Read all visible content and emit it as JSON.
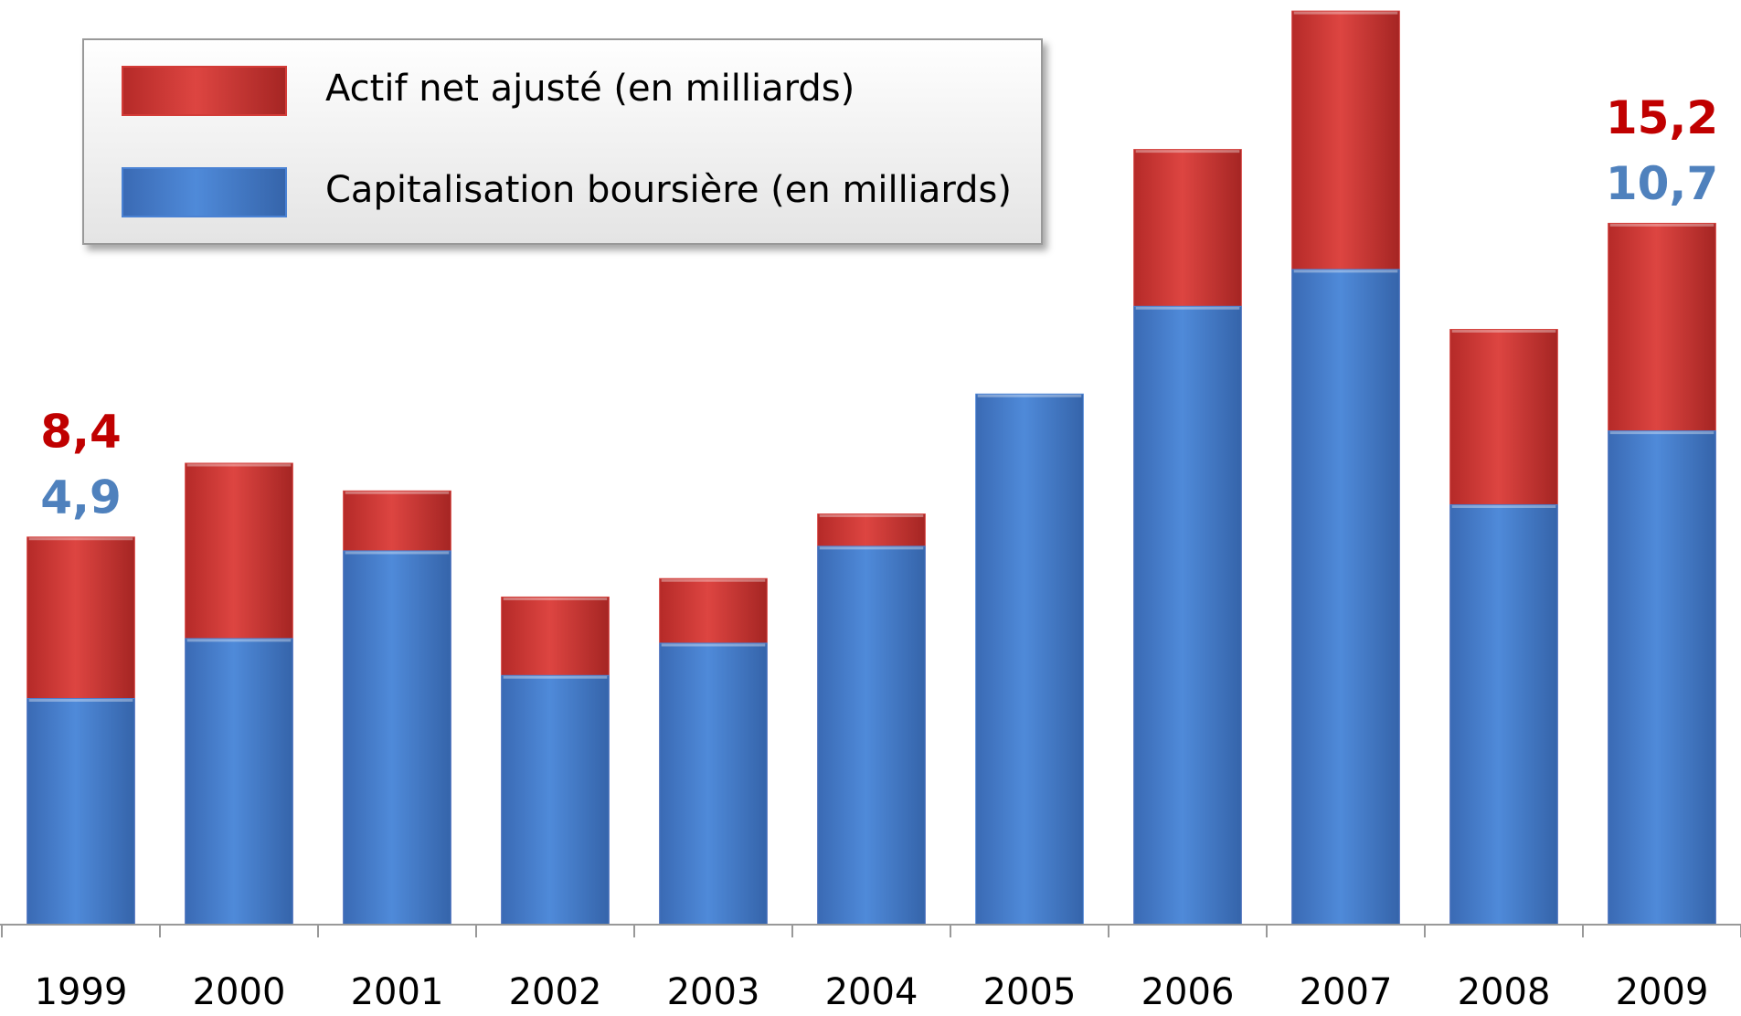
{
  "chart_data": {
    "type": "bar",
    "overlap": true,
    "categories": [
      "1999",
      "2000",
      "2001",
      "2002",
      "2003",
      "2004",
      "2005",
      "2006",
      "2007",
      "2008",
      "2009"
    ],
    "series": [
      {
        "name": "Actif net ajusté (en milliards)",
        "color": "#d33c38",
        "values": [
          8.4,
          10.0,
          9.4,
          7.1,
          7.5,
          8.9,
          null,
          16.8,
          19.8,
          12.9,
          15.2
        ],
        "value_labels": [
          "8,4",
          null,
          null,
          null,
          null,
          null,
          null,
          null,
          null,
          null,
          "15,2"
        ]
      },
      {
        "name": "Capitalisation boursière (en milliards)",
        "color": "#4a82d4",
        "values": [
          4.9,
          6.2,
          8.1,
          5.4,
          6.1,
          8.2,
          11.5,
          13.4,
          14.2,
          9.1,
          10.7
        ],
        "value_labels": [
          "4,9",
          null,
          null,
          null,
          null,
          null,
          null,
          null,
          null,
          null,
          "10,7"
        ]
      }
    ],
    "ylim": [
      0,
      20
    ],
    "legend": "top-left"
  }
}
